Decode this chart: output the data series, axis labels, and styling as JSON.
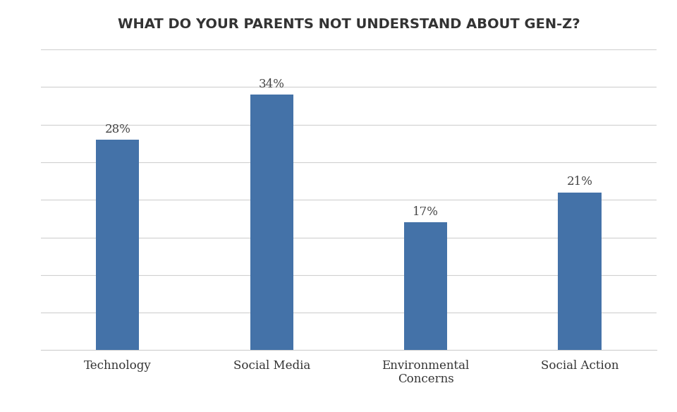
{
  "title": "WHAT DO YOUR PARENTS NOT UNDERSTAND ABOUT GEN-Z?",
  "categories": [
    "Technology",
    "Social Media",
    "Environmental\nConcerns",
    "Social Action"
  ],
  "values": [
    28,
    34,
    17,
    21
  ],
  "labels": [
    "28%",
    "34%",
    "17%",
    "21%"
  ],
  "bar_color": "#4472a8",
  "background_color": "#ffffff",
  "grid_color": "#d0d0d0",
  "title_fontsize": 14,
  "label_fontsize": 12,
  "tick_fontsize": 12,
  "ylim": [
    0,
    40
  ],
  "bar_width": 0.28,
  "figsize": [
    9.6,
    5.84
  ],
  "dpi": 100
}
